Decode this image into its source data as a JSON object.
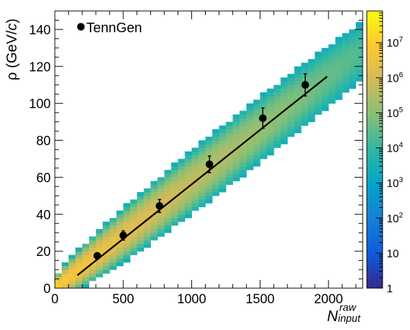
{
  "chart_data": {
    "type": "heatmap",
    "title": "",
    "xlabel": {
      "main": "N",
      "sup": "raw",
      "sub": "input"
    },
    "ylabel": {
      "pre": "ρ (GeV/",
      "italic": "c",
      "post": ")"
    },
    "xlim": [
      0,
      2250
    ],
    "ylim": [
      0,
      150
    ],
    "x_ticks": [
      {
        "value": 0,
        "label": "0"
      },
      {
        "value": 500,
        "label": "500"
      },
      {
        "value": 1000,
        "label": "1000"
      },
      {
        "value": 1500,
        "label": "1500"
      },
      {
        "value": 2000,
        "label": "2000"
      }
    ],
    "y_ticks": [
      {
        "value": 0,
        "label": "0"
      },
      {
        "value": 20,
        "label": "20"
      },
      {
        "value": 40,
        "label": "40"
      },
      {
        "value": 60,
        "label": "60"
      },
      {
        "value": 80,
        "label": "80"
      },
      {
        "value": 100,
        "label": "100"
      },
      {
        "value": 120,
        "label": "120"
      },
      {
        "value": 140,
        "label": "140"
      }
    ],
    "colorbar": {
      "scale": "log",
      "range": [
        1,
        80000000
      ],
      "ticks": [
        {
          "value": 1,
          "base": "1",
          "exp": ""
        },
        {
          "value": 10,
          "base": "10",
          "exp": ""
        },
        {
          "value": 100,
          "base": "10",
          "exp": "2"
        },
        {
          "value": 1000,
          "base": "10",
          "exp": "3"
        },
        {
          "value": 10000,
          "base": "10",
          "exp": "4"
        },
        {
          "value": 100000,
          "base": "10",
          "exp": "5"
        },
        {
          "value": 1000000,
          "base": "10",
          "exp": "6"
        },
        {
          "value": 10000000,
          "base": "10",
          "exp": "7"
        }
      ],
      "palette": "kBird"
    },
    "heatmap_band": {
      "x_bin_width": 50,
      "y_bin_width": 2,
      "center_slope": 0.0573,
      "peak_counts": 8000000,
      "min_counts": 2000
    },
    "series": [
      {
        "name": "TennGen",
        "type": "scatter",
        "x": [
          310,
          500,
          765,
          1130,
          1520,
          1830
        ],
        "y": [
          17.5,
          28.5,
          44.5,
          67,
          92,
          110
        ],
        "yerr": [
          1.5,
          2.5,
          3.5,
          4.5,
          5.5,
          6
        ]
      }
    ],
    "fit": {
      "type": "line",
      "x": [
        165,
        1990
      ],
      "y": [
        7,
        114.5
      ]
    },
    "legend": {
      "position": "top-left",
      "entries": [
        "TennGen"
      ]
    }
  }
}
